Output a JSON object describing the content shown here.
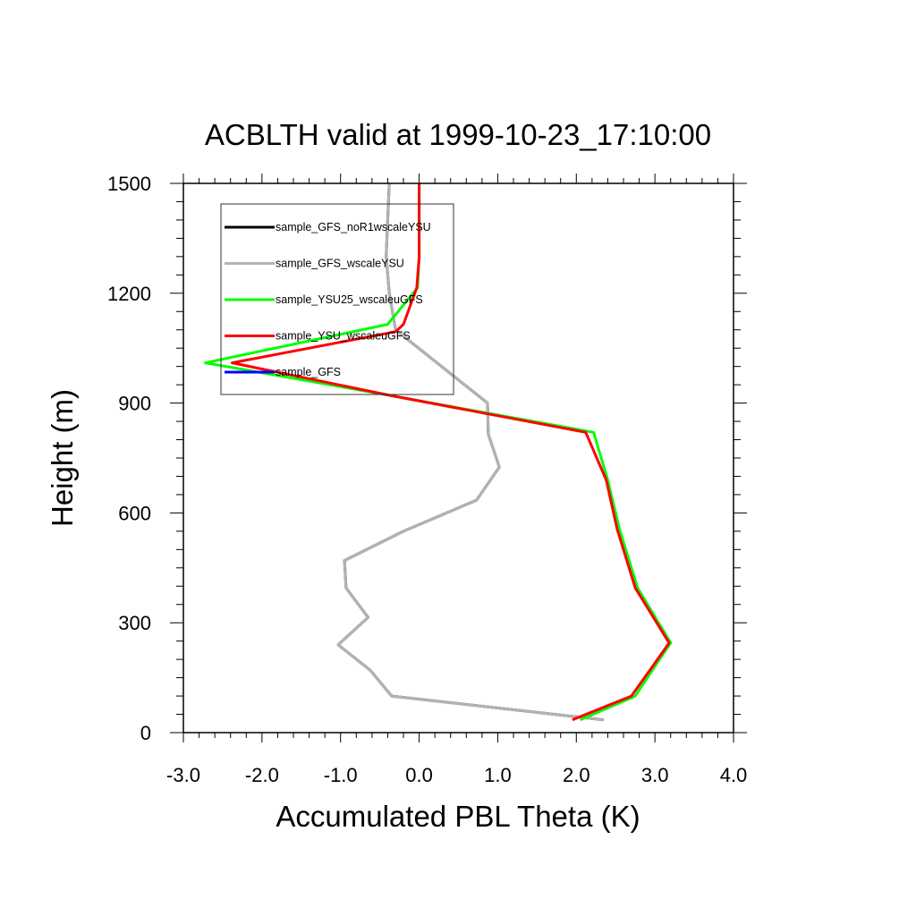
{
  "chart_data": {
    "type": "line",
    "title": "ACBLTH valid at 1999-10-23_17:10:00",
    "xlabel": "Accumulated PBL Theta (K)",
    "ylabel": "Height (m)",
    "xlim": [
      -3.0,
      4.0
    ],
    "ylim": [
      0,
      1500
    ],
    "xticks": [
      -3.0,
      -2.0,
      -1.0,
      0.0,
      1.0,
      2.0,
      3.0,
      4.0
    ],
    "xtick_labels": [
      "-3.0",
      "-2.0",
      "-1.0",
      "0.0",
      "1.0",
      "2.0",
      "3.0",
      "4.0"
    ],
    "yticks": [
      0,
      300,
      600,
      900,
      1200,
      1500
    ],
    "ytick_labels": [
      "0",
      "300",
      "600",
      "900",
      "1200",
      "1500"
    ],
    "grid": false,
    "legend_position": "top-left",
    "series": [
      {
        "name": "sample_GFS_noR1wscaleYSU",
        "color": "#000000",
        "points": [
          [
            2.35,
            35
          ],
          [
            -0.35,
            100
          ],
          [
            -0.62,
            170
          ],
          [
            -1.03,
            240
          ],
          [
            -0.65,
            315
          ],
          [
            -0.93,
            395
          ],
          [
            -0.95,
            470
          ],
          [
            -0.2,
            550
          ],
          [
            0.73,
            635
          ],
          [
            1.02,
            725
          ],
          [
            0.88,
            815
          ],
          [
            0.87,
            900
          ],
          [
            -0.3,
            1100
          ],
          [
            -0.38,
            1200
          ],
          [
            -0.42,
            1300
          ],
          [
            -0.4,
            1400
          ],
          [
            -0.38,
            1500
          ]
        ]
      },
      {
        "name": "sample_GFS_wscaleYSU",
        "color": "#b3b3b3",
        "points": [
          [
            2.35,
            35
          ],
          [
            -0.35,
            100
          ],
          [
            -0.62,
            170
          ],
          [
            -1.03,
            240
          ],
          [
            -0.65,
            315
          ],
          [
            -0.93,
            395
          ],
          [
            -0.95,
            470
          ],
          [
            -0.2,
            550
          ],
          [
            0.73,
            635
          ],
          [
            1.02,
            725
          ],
          [
            0.88,
            815
          ],
          [
            0.87,
            900
          ],
          [
            -0.3,
            1100
          ],
          [
            -0.38,
            1200
          ],
          [
            -0.42,
            1300
          ],
          [
            -0.4,
            1400
          ],
          [
            -0.38,
            1500
          ]
        ]
      },
      {
        "name": "sample_YSU25_wscaleuGFS",
        "color": "#00ff00",
        "points": [
          [
            2.05,
            35
          ],
          [
            2.75,
            100
          ],
          [
            2.98,
            175
          ],
          [
            3.2,
            245
          ],
          [
            2.78,
            395
          ],
          [
            2.55,
            555
          ],
          [
            2.4,
            690
          ],
          [
            2.22,
            820
          ],
          [
            -0.35,
            920
          ],
          [
            -2.72,
            1010
          ],
          [
            -0.4,
            1115
          ],
          [
            -0.02,
            1215
          ],
          [
            0.0,
            1300
          ],
          [
            0.0,
            1400
          ],
          [
            0.0,
            1500
          ]
        ]
      },
      {
        "name": "sample_YSU_wscaleuGFS",
        "color": "#ff0000",
        "points": [
          [
            1.95,
            35
          ],
          [
            2.7,
            100
          ],
          [
            2.95,
            175
          ],
          [
            3.18,
            245
          ],
          [
            2.75,
            395
          ],
          [
            2.52,
            555
          ],
          [
            2.38,
            690
          ],
          [
            2.12,
            820
          ],
          [
            -0.35,
            920
          ],
          [
            -2.38,
            1010
          ],
          [
            -0.3,
            1095
          ],
          [
            -0.2,
            1115
          ],
          [
            -0.03,
            1215
          ],
          [
            0.0,
            1300
          ],
          [
            0.0,
            1400
          ],
          [
            0.0,
            1500
          ]
        ]
      },
      {
        "name": "sample_GFS",
        "color": "#0000ff",
        "points": []
      }
    ]
  }
}
